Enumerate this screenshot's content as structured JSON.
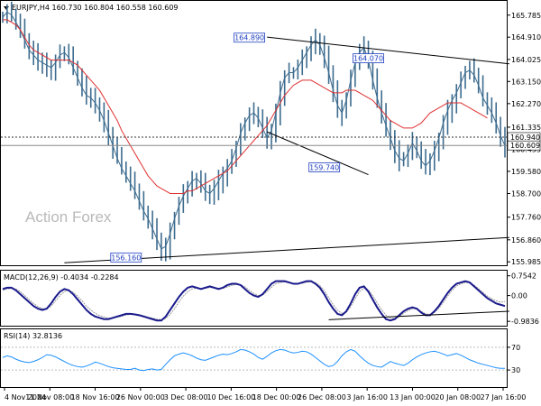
{
  "chart_data": {
    "type": "line",
    "watermark": "Action Forex",
    "x_ticks": [
      "4 Nov 2024",
      "11 Nov 08:00",
      "18 Nov 16:00",
      "26 Nov 00:00",
      "3 Dec 08:00",
      "10 Dec 16:00",
      "18 Dec 00:00",
      "26 Dec 08:00",
      "3 Jan 16:00",
      "13 Jan 00:00",
      "20 Jan 08:00",
      "27 Jan 16:00"
    ],
    "colors": {
      "price": "#3d6c8f",
      "ma": "#e03030",
      "macd_line": "#1a1a8c",
      "macd_signal": "#999999",
      "rsi": "#1e90ff",
      "trendline": "#000000",
      "dotted": "#333333",
      "annotation": "#1f3fbf"
    },
    "price": {
      "title": "EURJPY,H4  160.730 160.804 160.558 160.609",
      "y_ticks": [
        "165.785",
        "164.910",
        "164.025",
        "163.150",
        "162.270",
        "161.335",
        "160.455",
        "159.580",
        "158.700",
        "157.760",
        "156.860",
        "155.985"
      ],
      "ylim": [
        155.85,
        166.35
      ],
      "last_value": 160.609,
      "last_label": "160.609",
      "level_value": 160.94,
      "level_label": "160.940",
      "close": [
        165.7,
        165.9,
        165.8,
        165.5,
        165.2,
        164.8,
        164.4,
        164.2,
        164.0,
        163.9,
        163.8,
        163.7,
        163.9,
        164.2,
        164.3,
        164.1,
        163.7,
        163.3,
        162.9,
        162.6,
        162.5,
        162.3,
        162.0,
        161.6,
        161.1,
        160.6,
        160.1,
        159.7,
        159.4,
        159.1,
        158.8,
        158.4,
        158.0,
        157.7,
        157.3,
        156.9,
        156.5,
        156.6,
        157.1,
        157.7,
        158.2,
        158.6,
        158.9,
        159.2,
        159.3,
        159.1,
        158.8,
        158.7,
        158.9,
        159.2,
        159.5,
        159.7,
        160.0,
        160.5,
        161.1,
        161.5,
        161.8,
        161.9,
        161.7,
        161.3,
        160.9,
        161.2,
        161.9,
        162.7,
        163.3,
        163.5,
        163.5,
        163.7,
        164.0,
        164.3,
        164.6,
        164.8,
        164.6,
        164.1,
        163.5,
        162.8,
        162.2,
        161.9,
        162.4,
        163.2,
        163.9,
        164.3,
        164.5,
        164.0,
        163.2,
        162.5,
        161.9,
        161.4,
        160.9,
        160.4,
        160.1,
        160.0,
        160.3,
        160.7,
        160.4,
        160.0,
        159.8,
        160.0,
        160.4,
        160.9,
        161.5,
        162.0,
        162.4,
        162.7,
        163.1,
        163.5,
        163.6,
        163.4,
        163.0,
        162.5,
        162.2,
        161.9,
        161.5,
        161.0,
        160.6
      ],
      "ma": [
        165.6,
        165.6,
        165.5,
        165.4,
        165.2,
        164.9,
        164.6,
        164.4,
        164.3,
        164.2,
        164.1,
        164.0,
        164.0,
        164.0,
        164.0,
        164.0,
        163.9,
        163.8,
        163.6,
        163.4,
        163.2,
        163.0,
        162.8,
        162.5,
        162.2,
        161.9,
        161.6,
        161.2,
        160.9,
        160.6,
        160.3,
        160.0,
        159.7,
        159.4,
        159.2,
        159.0,
        158.9,
        158.8,
        158.7,
        158.7,
        158.7,
        158.7,
        158.8,
        158.8,
        158.9,
        159.0,
        159.1,
        159.2,
        159.3,
        159.4,
        159.5,
        159.6,
        159.8,
        160.0,
        160.2,
        160.4,
        160.6,
        160.8,
        161.0,
        161.2,
        161.4,
        161.7,
        162.0,
        162.3,
        162.6,
        162.8,
        163.0,
        163.1,
        163.2,
        163.2,
        163.2,
        163.1,
        163.0,
        162.9,
        162.8,
        162.7,
        162.7,
        162.7,
        162.8,
        162.8,
        162.8,
        162.7,
        162.6,
        162.5,
        162.4,
        162.2,
        162.0,
        161.8,
        161.6,
        161.5,
        161.4,
        161.3,
        161.3,
        161.3,
        161.4,
        161.5,
        161.7,
        161.9,
        162.0,
        162.1,
        162.2,
        162.3,
        162.3,
        162.3,
        162.3,
        162.2,
        162.1,
        162.0,
        161.9,
        161.8,
        161.7
      ],
      "trendlines": [
        {
          "from": [
            60,
            164.91
          ],
          "to": [
            115,
            163.85
          ]
        },
        {
          "from": [
            60,
            161.15
          ],
          "to": [
            83,
            159.45
          ]
        },
        {
          "from": [
            14,
            155.95
          ],
          "to": [
            115,
            156.95
          ]
        }
      ],
      "annotations": [
        {
          "label": "164.890",
          "x": 56,
          "value": 164.89
        },
        {
          "label": "164.070",
          "x": 83,
          "value": 164.07
        },
        {
          "label": "159.740",
          "x": 73,
          "value": 159.74
        },
        {
          "label": "156.160",
          "x": 28,
          "value": 156.16
        }
      ]
    },
    "macd": {
      "title": "MACD(12,26,9) -0.4034 -0.2284",
      "y_ticks": [
        "0.7542",
        "0.00",
        "-0.9836"
      ],
      "ylim": [
        -1.15,
        0.95
      ],
      "line": [
        0.25,
        0.3,
        0.3,
        0.2,
        0.05,
        -0.1,
        -0.25,
        -0.4,
        -0.5,
        -0.55,
        -0.5,
        -0.3,
        -0.05,
        0.15,
        0.25,
        0.2,
        0.05,
        -0.15,
        -0.35,
        -0.55,
        -0.7,
        -0.8,
        -0.85,
        -0.9,
        -0.9,
        -0.85,
        -0.8,
        -0.75,
        -0.7,
        -0.7,
        -0.72,
        -0.75,
        -0.8,
        -0.85,
        -0.9,
        -0.95,
        -0.95,
        -0.8,
        -0.55,
        -0.3,
        -0.05,
        0.15,
        0.3,
        0.35,
        0.3,
        0.25,
        0.3,
        0.35,
        0.3,
        0.25,
        0.3,
        0.4,
        0.45,
        0.45,
        0.4,
        0.25,
        0.1,
        0.0,
        -0.05,
        0.05,
        0.25,
        0.45,
        0.55,
        0.55,
        0.55,
        0.5,
        0.45,
        0.45,
        0.5,
        0.55,
        0.55,
        0.45,
        0.3,
        0.05,
        -0.25,
        -0.5,
        -0.7,
        -0.75,
        -0.6,
        -0.3,
        0.05,
        0.3,
        0.35,
        0.15,
        -0.15,
        -0.45,
        -0.7,
        -0.9,
        -0.95,
        -0.9,
        -0.75,
        -0.6,
        -0.5,
        -0.45,
        -0.5,
        -0.65,
        -0.75,
        -0.75,
        -0.6,
        -0.4,
        -0.15,
        0.1,
        0.3,
        0.45,
        0.5,
        0.55,
        0.5,
        0.35,
        0.2,
        0.05,
        -0.1,
        -0.2,
        -0.3,
        -0.35,
        -0.4
      ],
      "signal": [
        0.2,
        0.25,
        0.28,
        0.25,
        0.15,
        0.0,
        -0.15,
        -0.3,
        -0.42,
        -0.5,
        -0.5,
        -0.4,
        -0.2,
        0.0,
        0.15,
        0.2,
        0.12,
        -0.02,
        -0.2,
        -0.4,
        -0.55,
        -0.68,
        -0.76,
        -0.82,
        -0.86,
        -0.86,
        -0.83,
        -0.79,
        -0.74,
        -0.72,
        -0.72,
        -0.74,
        -0.77,
        -0.82,
        -0.86,
        -0.9,
        -0.92,
        -0.87,
        -0.72,
        -0.5,
        -0.25,
        -0.02,
        0.15,
        0.26,
        0.28,
        0.27,
        0.28,
        0.31,
        0.3,
        0.28,
        0.28,
        0.33,
        0.39,
        0.42,
        0.41,
        0.33,
        0.2,
        0.08,
        0.0,
        0.02,
        0.15,
        0.32,
        0.45,
        0.5,
        0.52,
        0.5,
        0.47,
        0.46,
        0.47,
        0.51,
        0.53,
        0.49,
        0.38,
        0.18,
        -0.08,
        -0.34,
        -0.56,
        -0.68,
        -0.63,
        -0.42,
        -0.12,
        0.15,
        0.28,
        0.22,
        0.0,
        -0.28,
        -0.54,
        -0.75,
        -0.86,
        -0.88,
        -0.8,
        -0.68,
        -0.57,
        -0.5,
        -0.5,
        -0.6,
        -0.7,
        -0.72,
        -0.64,
        -0.48,
        -0.26,
        -0.02,
        0.2,
        0.36,
        0.45,
        0.5,
        0.49,
        0.4,
        0.26,
        0.12,
        -0.02,
        -0.12,
        -0.2,
        -0.25,
        -0.23
      ],
      "trendlines": [
        {
          "from": [
            74,
            -0.92
          ],
          "to": [
            115,
            -0.6
          ]
        }
      ]
    },
    "rsi": {
      "title": "RSI(14) 32.8136",
      "y_ticks": [
        "70",
        "30"
      ],
      "ylim": [
        0,
        100
      ],
      "values": [
        52,
        55,
        53,
        49,
        46,
        44,
        43,
        45,
        48,
        52,
        57,
        56,
        53,
        49,
        45,
        41,
        38,
        36,
        35,
        37,
        40,
        44,
        42,
        39,
        36,
        34,
        33,
        32,
        31,
        31,
        33,
        30,
        29,
        31,
        32,
        30,
        31,
        40,
        48,
        55,
        58,
        60,
        58,
        55,
        51,
        48,
        47,
        50,
        53,
        56,
        58,
        57,
        59,
        62,
        66,
        65,
        62,
        58,
        52,
        49,
        54,
        60,
        64,
        66,
        65,
        62,
        60,
        61,
        63,
        62,
        58,
        52,
        46,
        40,
        36,
        38,
        45,
        55,
        62,
        66,
        63,
        55,
        48,
        42,
        38,
        36,
        35,
        40,
        45,
        42,
        40,
        38,
        42,
        48,
        53,
        57,
        60,
        62,
        63,
        61,
        58,
        55,
        57,
        59,
        56,
        52,
        48,
        45,
        42,
        40,
        38,
        36,
        34,
        33,
        33
      ]
    }
  }
}
